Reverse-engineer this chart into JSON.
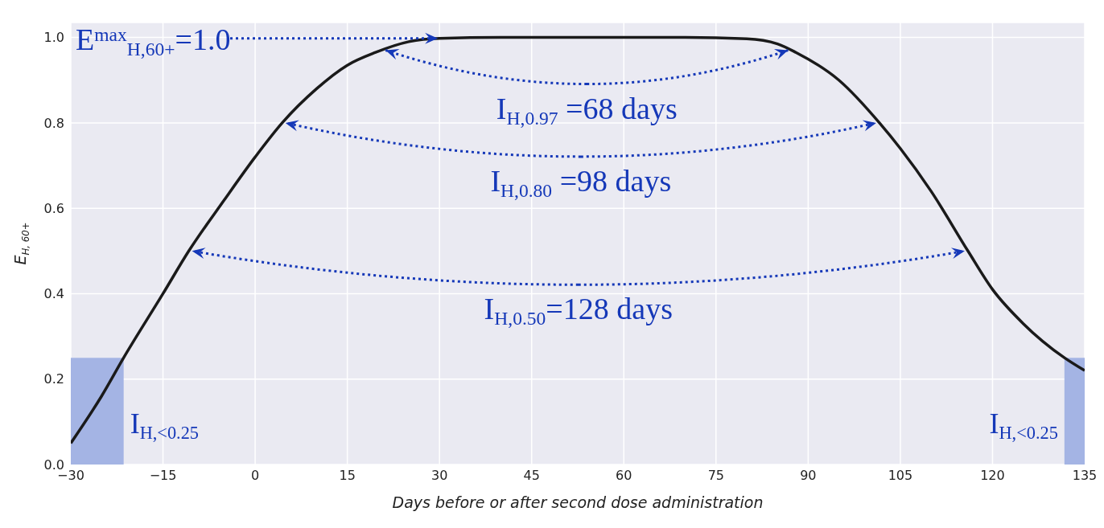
{
  "chart_data": {
    "type": "line",
    "xlabel": "Days before or after second dose administration",
    "ylabel": "E$_{H, 60+}$",
    "x": [
      -30,
      -25,
      -21.4,
      -15,
      -10.8,
      -5,
      0,
      4.4,
      10,
      15,
      19.6,
      25,
      30,
      40,
      50,
      60,
      70,
      80,
      85,
      88,
      95,
      101.6,
      105,
      110,
      116,
      120,
      125,
      131.7,
      135
    ],
    "series": [
      {
        "color": "#1a1a1a",
        "values": [
          0.05,
          0.16,
          0.25,
          0.4,
          0.5,
          0.62,
          0.72,
          0.8,
          0.88,
          0.935,
          0.965,
          0.99,
          0.998,
          1.0,
          1.0,
          1.0,
          1.0,
          0.997,
          0.985,
          0.965,
          0.9,
          0.8,
          0.74,
          0.64,
          0.5,
          0.41,
          0.33,
          0.25,
          0.22
        ]
      }
    ],
    "xlim": [
      -30,
      135
    ],
    "ylim": [
      0,
      1.035
    ],
    "xticks": [
      {
        "value": -30,
        "label": "−30"
      },
      {
        "value": -15,
        "label": "−15"
      },
      0,
      15,
      30,
      45,
      60,
      75,
      90,
      105,
      120,
      135
    ],
    "yticks": [
      {
        "value": 0,
        "label": "0.0"
      },
      {
        "value": 0.2,
        "label": "0.2"
      },
      {
        "value": 0.4,
        "label": "0.4"
      },
      {
        "value": 0.6,
        "label": "0.6"
      },
      {
        "value": 0.8,
        "label": "0.8"
      },
      {
        "value": 1,
        "label": "1.0"
      }
    ],
    "grid": true,
    "legend": false,
    "line_style": "solid",
    "bands": [
      {
        "axis": "x",
        "from": -30,
        "to": -21.4,
        "label": "I$_{H,<0.25}$",
        "color": "#a4b4e4"
      },
      {
        "axis": "x",
        "from": 131.7,
        "to": 135,
        "label": "I$_{H,<0.25}$",
        "color": "#a4b4e4"
      }
    ],
    "annotations": [
      {
        "text": "E$^{max}$$_{H,60+}$=1.0",
        "x": 30,
        "y": 0.998
      },
      {
        "text": "I$_{H,0.97}$ =68 days",
        "x": 20.7,
        "y": 0.97
      },
      {
        "text": "I$_{H,0.80}$ =98 days",
        "x": 4.4,
        "y": 0.8
      },
      {
        "text": "I$_{H,0.50}$=128 days",
        "x": -10.8,
        "y": 0.5
      }
    ]
  }
}
